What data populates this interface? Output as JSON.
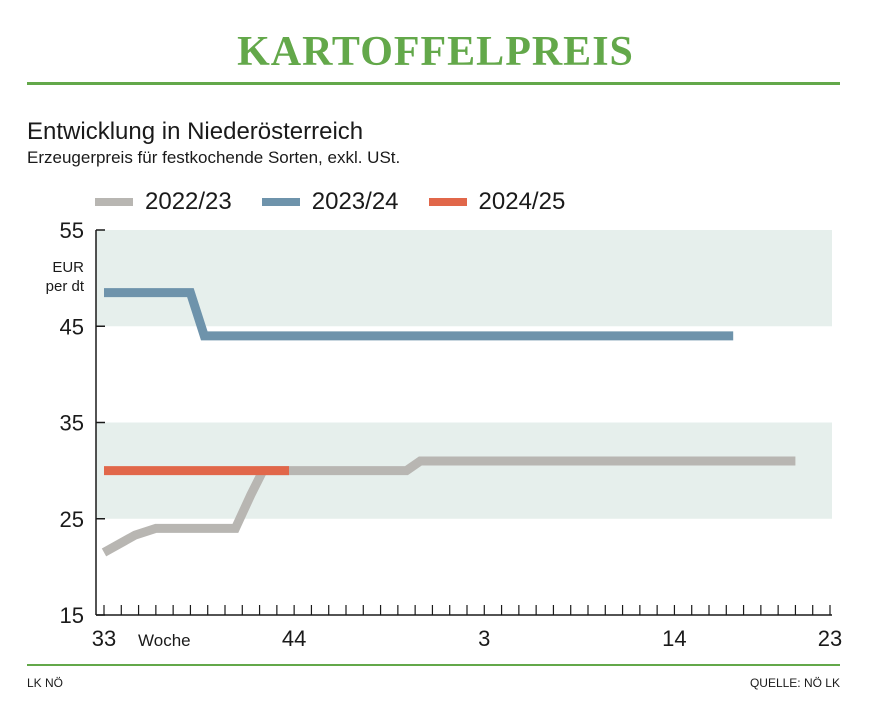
{
  "header": {
    "title": "KARTOFFELPREIS"
  },
  "chart_data": {
    "type": "line",
    "subtitle": "Entwicklung in Niederösterreich",
    "description": "Erzeugerpreis für festkochende Sorten, exkl. USt.",
    "unit": "EUR per dt",
    "xlabel": "Woche",
    "x_tick_labels": [
      "33",
      "44",
      "3",
      "14",
      "23"
    ],
    "y_tick_labels": [
      "55",
      "45",
      "35",
      "25",
      "15"
    ],
    "ylim": [
      15,
      55
    ],
    "x_range_weeks": [
      0,
      42
    ],
    "x_tick_positions": [
      0,
      11,
      22,
      33,
      42
    ],
    "shaded_bands": [
      [
        45,
        55
      ],
      [
        25,
        35
      ]
    ],
    "series": [
      {
        "name": "2022/23",
        "color": "#b8b6b2",
        "x": [
          0,
          1.8,
          3,
          7,
          7.6,
          8.5,
          9.2,
          11,
          17.5,
          18.3,
          20,
          24,
          28,
          32,
          36,
          40,
          39.3
        ],
        "y": [
          21.5,
          23.3,
          24,
          24,
          24,
          27.5,
          30,
          30,
          30,
          31,
          31,
          31,
          31,
          31,
          31,
          31,
          31
        ]
      },
      {
        "name": "2023/24",
        "color": "#6e93ab",
        "x": [
          0,
          5,
          5.8,
          10,
          20,
          30,
          36.4
        ],
        "y": [
          48.5,
          48.5,
          44,
          44,
          44,
          44,
          44
        ]
      },
      {
        "name": "2024/25",
        "color": "#e1674a",
        "x": [
          0,
          5,
          10.7
        ],
        "y": [
          30,
          30,
          30
        ]
      }
    ],
    "legend_position": "top-left",
    "grid": false
  },
  "footer": {
    "left": "LK NÖ",
    "right": "QUELLE: NÖ LK"
  }
}
